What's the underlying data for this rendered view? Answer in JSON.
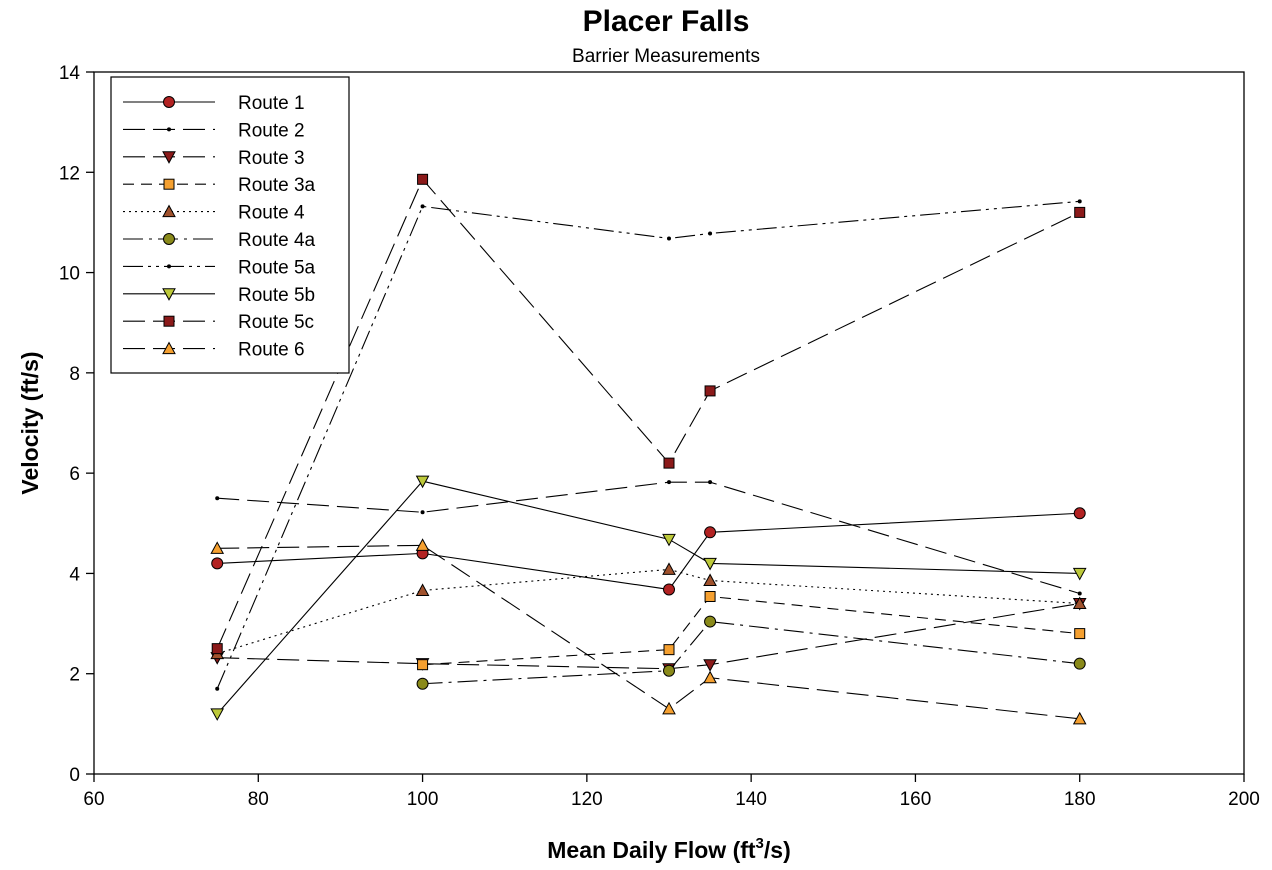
{
  "chart_data": {
    "type": "line",
    "title": "Placer Falls",
    "subtitle": "Barrier Measurements",
    "xlabel": {
      "main": "Mean Daily Flow (ft",
      "sup": "3",
      "tail": "/s)"
    },
    "ylabel": "Velocity (ft/s)",
    "xlim": [
      60,
      200
    ],
    "ylim": [
      0,
      14
    ],
    "xticks": [
      "60",
      "80",
      "100",
      "120",
      "140",
      "160",
      "180",
      "200"
    ],
    "yticks": [
      "0",
      "2",
      "4",
      "6",
      "8",
      "10",
      "12",
      "14"
    ],
    "grid": false,
    "legend_position": "top-left",
    "series": [
      {
        "name": "Route 1",
        "marker": "circle",
        "fill": "#b22222",
        "dash": "",
        "x": [
          75,
          100,
          130,
          135,
          180
        ],
        "y": [
          4.2,
          4.4,
          3.68,
          4.82,
          5.2
        ]
      },
      {
        "name": "Route 2",
        "marker": "dot",
        "fill": "#000000",
        "dash": "22,8",
        "x": [
          75,
          100,
          130,
          135,
          180
        ],
        "y": [
          5.5,
          5.22,
          5.82,
          5.82,
          3.6
        ]
      },
      {
        "name": "Route 3",
        "marker": "triangle-down",
        "fill": "#8b1a1a",
        "dash": "22,8",
        "x": [
          75,
          100,
          130,
          135,
          180
        ],
        "y": [
          2.32,
          2.2,
          2.1,
          2.18,
          3.4
        ]
      },
      {
        "name": "Route 3a",
        "marker": "square",
        "fill": "#f5a030",
        "dash": "11,7",
        "x": [
          100,
          130,
          135,
          180
        ],
        "y": [
          2.18,
          2.48,
          3.54,
          2.8
        ]
      },
      {
        "name": "Route 4",
        "marker": "triangle-up",
        "fill": "#a0522d",
        "dash": "2,4",
        "x": [
          75,
          100,
          130,
          135,
          180
        ],
        "y": [
          2.4,
          3.66,
          4.08,
          3.86,
          3.4
        ]
      },
      {
        "name": "Route 4a",
        "marker": "circle",
        "fill": "#8a8a1a",
        "dash": "20,6,3,6",
        "x": [
          100,
          130,
          135,
          180
        ],
        "y": [
          1.8,
          2.06,
          3.04,
          2.2
        ]
      },
      {
        "name": "Route 5a",
        "marker": "dot",
        "fill": "#000000",
        "dash": "20,5,3,5,3,5",
        "x": [
          75,
          100,
          130,
          135,
          180
        ],
        "y": [
          1.7,
          11.32,
          10.68,
          10.78,
          11.42
        ]
      },
      {
        "name": "Route 5b",
        "marker": "triangle-down",
        "fill": "#bdc93a",
        "dash": "",
        "x": [
          75,
          100,
          130,
          135,
          180
        ],
        "y": [
          1.2,
          5.84,
          4.68,
          4.2,
          4.0
        ]
      },
      {
        "name": "Route 5c",
        "marker": "square",
        "fill": "#8b1a1a",
        "dash": "22,8",
        "x": [
          75,
          100,
          130,
          135,
          180
        ],
        "y": [
          2.5,
          11.86,
          6.2,
          7.64,
          11.2
        ]
      },
      {
        "name": "Route 6",
        "marker": "triangle-up",
        "fill": "#f5a030",
        "dash": "22,8",
        "x": [
          75,
          100,
          130,
          135,
          180
        ],
        "y": [
          4.5,
          4.56,
          1.3,
          1.92,
          1.1
        ]
      }
    ]
  }
}
